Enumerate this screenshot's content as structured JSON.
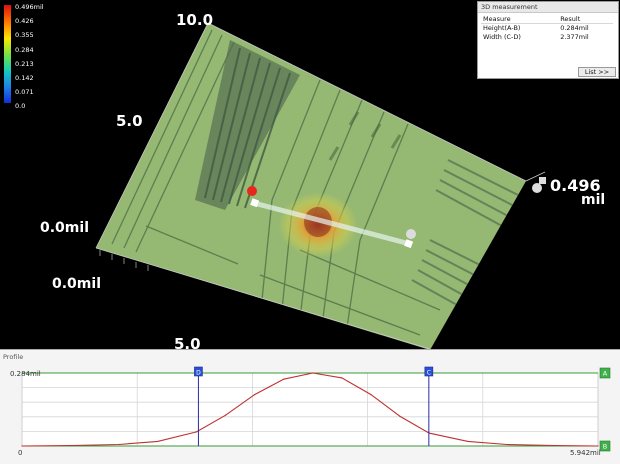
{
  "viewport": {
    "axis_labels": {
      "top": "10.0",
      "middle": "5.0",
      "left_upper": "0.0mil",
      "left_lower": "0.0mil",
      "bottom": "5.0",
      "z_value": "0.496",
      "z_unit": "mil"
    },
    "legend": {
      "ticks": [
        "0.496mil",
        "0.426",
        "0.355",
        "0.284",
        "0.213",
        "0.142",
        "0.071",
        "0.0"
      ],
      "colors": [
        "#e01010",
        "#ff7a00",
        "#ffe600",
        "#6de04a",
        "#12c9c0",
        "#1f7fe8",
        "#1030d8"
      ]
    },
    "markers": {
      "a_color": "#e8261e",
      "b_color": "#ffffff",
      "c_color": "#dcdcdc",
      "d_color": "#ffffff",
      "z_marker_color": "#dddddd"
    },
    "surface_color": "#9cbf7a",
    "hotspot_colors": [
      "#b2442a",
      "#e6a234",
      "#d8d24a"
    ]
  },
  "measurement_panel": {
    "title": "3D measurement",
    "columns": [
      "Measure",
      "Result"
    ],
    "rows": [
      {
        "measure": "Height(A-B)",
        "result": "0.284mil"
      },
      {
        "measure": "Width (C-D)",
        "result": "2.377mil"
      }
    ],
    "list_button": "List >>"
  },
  "profile": {
    "title": "Profile",
    "y_max_label": "0.284mil",
    "x_min_label": "0",
    "x_max_label": "5.942mil",
    "markers": {
      "left": "D",
      "right": "C"
    },
    "side_markers": {
      "top": "A",
      "bottom": "B"
    },
    "curve_color": "#c03030",
    "frame_color": "#3a9a3a",
    "cursor_color": "#2a2aa8"
  },
  "chart_data": {
    "type": "line",
    "xlabel": "",
    "ylabel": "",
    "x_unit": "mil",
    "y_unit": "mil",
    "xlim": [
      0,
      5.942
    ],
    "ylim": [
      0,
      0.284
    ],
    "grid": true,
    "series": [
      {
        "x": [
          0,
          0.5,
          1.0,
          1.4,
          1.8,
          2.1,
          2.4,
          2.7,
          3.0,
          3.3,
          3.6,
          3.9,
          4.2,
          4.6,
          5.0,
          5.5,
          5.942
        ],
        "y": [
          0.0,
          0.002,
          0.006,
          0.018,
          0.055,
          0.12,
          0.2,
          0.26,
          0.284,
          0.265,
          0.2,
          0.115,
          0.05,
          0.018,
          0.006,
          0.002,
          0.0
        ]
      }
    ],
    "cursors": [
      {
        "label": "D",
        "x": 1.82
      },
      {
        "label": "C",
        "x": 4.197
      }
    ]
  }
}
